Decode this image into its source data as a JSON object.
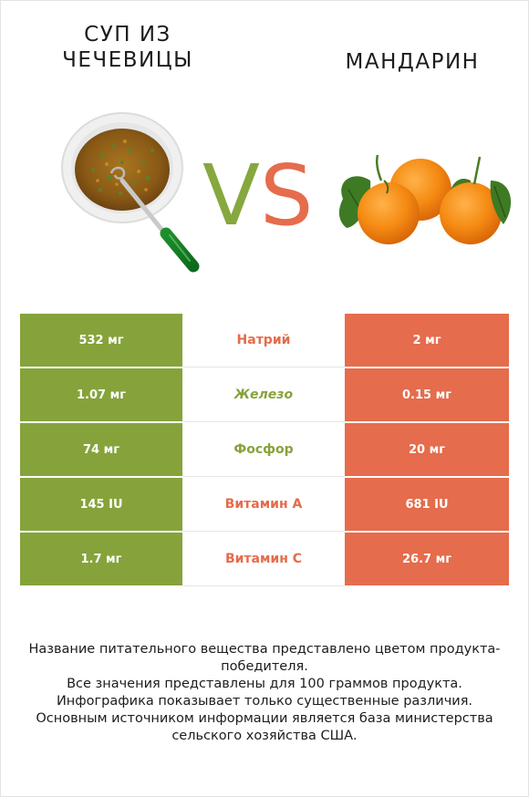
{
  "products": {
    "left": {
      "name": "суп из чечевицы",
      "icon": "lentil-soup-bowl-image",
      "color": "#86a33b"
    },
    "right": {
      "name": "мандарин",
      "icon": "mandarin-oranges-image",
      "color": "#e56c4c"
    }
  },
  "vs": {
    "v": "V",
    "s": "S"
  },
  "nutrients": [
    {
      "name": "Натрий",
      "left": "532 мг",
      "right": "2 мг",
      "winner": "right"
    },
    {
      "name": "Железо",
      "left": "1.07 мг",
      "right": "0.15 мг",
      "winner": "left"
    },
    {
      "name": "Фосфор",
      "left": "74 мг",
      "right": "20 мг",
      "winner": "left"
    },
    {
      "name": "Витамин A",
      "left": "145 IU",
      "right": "681 IU",
      "winner": "right"
    },
    {
      "name": "Витамин C",
      "left": "1.7 мг",
      "right": "26.7 мг",
      "winner": "right"
    }
  ],
  "footer": [
    "Название питательного вещества представлено цветом продукта-победителя.",
    "Все значения представлены для 100 граммов продукта.",
    "Инфографика показывает только существенные различия.",
    "Основным источником информации является база министерства сельского хозяйства США."
  ]
}
